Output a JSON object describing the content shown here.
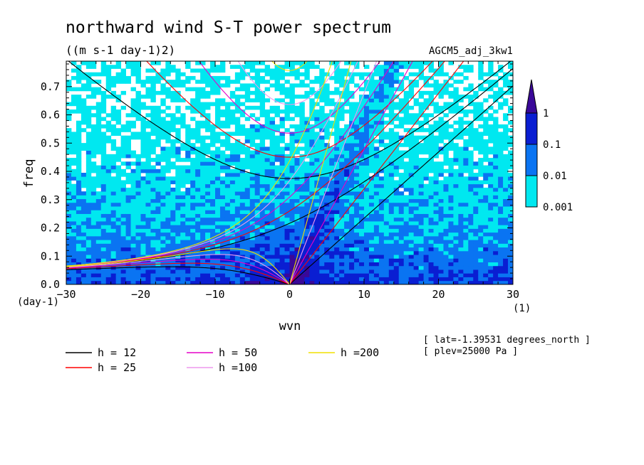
{
  "chart_data": {
    "type": "heatmap",
    "title": "northward wind S-T power spectrum",
    "units": "((m s-1 day-1)2)",
    "dataset": "AGCM5_adj_3kw1",
    "xlabel": "wvn",
    "ylabel": "freq",
    "x_unit": "(1)",
    "y_unit": "(day-1)",
    "xlim": [
      -30,
      30
    ],
    "ylim": [
      0,
      0.79
    ],
    "x_ticks": [
      -30,
      -20,
      -10,
      0,
      10,
      20,
      30
    ],
    "y_ticks": [
      0.0,
      0.1,
      0.2,
      0.3,
      0.4,
      0.5,
      0.6,
      0.7
    ],
    "x_tick_labels": [
      "−30",
      "−20",
      "−10",
      "0",
      "10",
      "20",
      "30"
    ],
    "y_tick_labels": [
      "0.0",
      "0.1",
      "0.2",
      "0.3",
      "0.4",
      "0.5",
      "0.6",
      "0.7"
    ],
    "colorbar": {
      "levels": [
        0.001,
        0.01,
        0.1,
        1
      ],
      "labels": [
        "0.001",
        "0.01",
        "0.1",
        "1"
      ],
      "colors": [
        "#00e8f0",
        "#0a74f2",
        "#0a1ed2",
        "#3a0898"
      ]
    },
    "dispersion_curves": [
      {
        "label": "h = 12",
        "h": 12,
        "color": "#000000"
      },
      {
        "label": "h = 25",
        "h": 25,
        "color": "#ff0000"
      },
      {
        "label": "h = 50",
        "h": 50,
        "color": "#e600c8"
      },
      {
        "label": "h =100",
        "h": 100,
        "color": "#ee99ee"
      },
      {
        "label": "h =200",
        "h": 200,
        "color": "#f0e000"
      }
    ],
    "annotations": [
      "[ lat=-1.39531 degrees_north ]",
      "[ plev=25000 Pa ]"
    ]
  }
}
